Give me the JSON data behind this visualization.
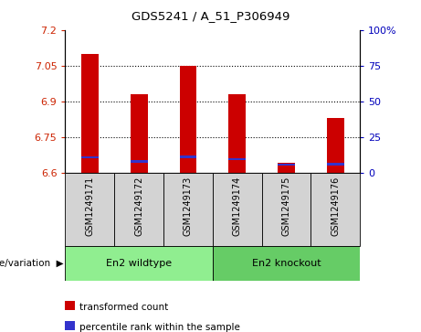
{
  "title": "GDS5241 / A_51_P306949",
  "samples": [
    "GSM1249171",
    "GSM1249172",
    "GSM1249173",
    "GSM1249174",
    "GSM1249175",
    "GSM1249176"
  ],
  "red_tops": [
    7.1,
    6.93,
    7.05,
    6.93,
    6.64,
    6.83
  ],
  "blue_bottoms": [
    6.66,
    6.643,
    6.661,
    6.651,
    6.628,
    6.631
  ],
  "blue_heights": [
    0.01,
    0.01,
    0.01,
    0.01,
    0.01,
    0.01
  ],
  "baseline": 6.6,
  "ylim": [
    6.6,
    7.2
  ],
  "yticks_left": [
    6.6,
    6.75,
    6.9,
    7.05,
    7.2
  ],
  "yticks_right_labels": [
    "0",
    "25",
    "50",
    "75",
    "100%"
  ],
  "bar_color_red": "#CC0000",
  "bar_color_blue": "#3333CC",
  "cell_bg": "#D3D3D3",
  "group_bg_light": "#90EE90",
  "group_bg_dark": "#66CC66",
  "left_tick_color": "#CC2200",
  "right_tick_color": "#0000BB",
  "bar_width": 0.35,
  "wildtype_label": "En2 wildtype",
  "knockout_label": "En2 knockout",
  "group_row_label": "genotype/variation",
  "legend_red_label": "transformed count",
  "legend_blue_label": "percentile rank within the sample"
}
